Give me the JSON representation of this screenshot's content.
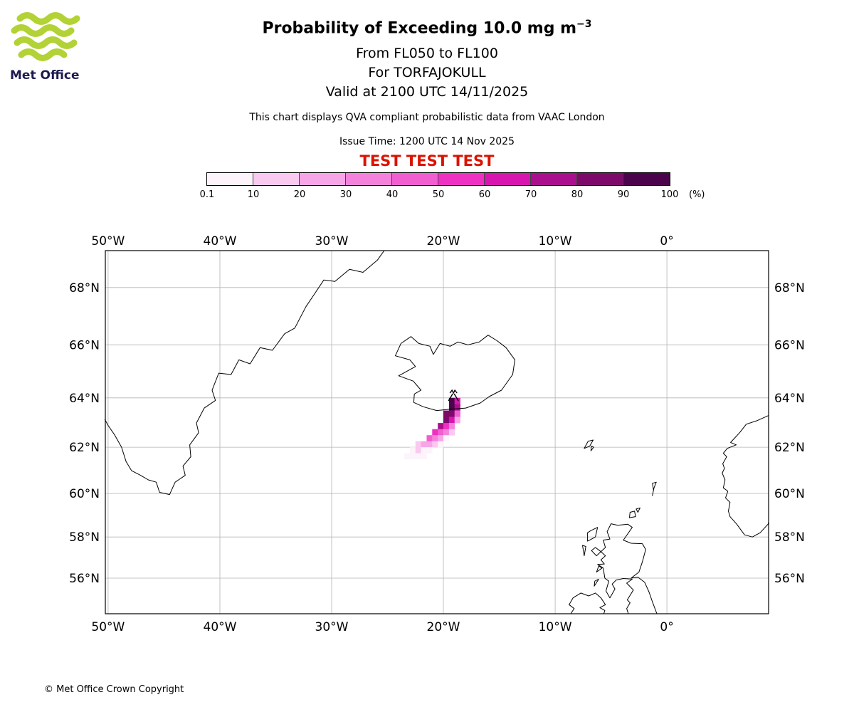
{
  "header": {
    "logo_text": "Met Office",
    "title_main": "Probability of Exceeding 10.0 mg m",
    "title_sup": "−3",
    "subtitle1": "From FL050 to FL100",
    "subtitle2": "For TORFAJOKULL",
    "subtitle3": "Valid at 2100 UTC 14/11/2025",
    "info_line": "This chart displays QVA compliant probabilistic data from VAAC London",
    "issue_time": "Issue Time: 1200 UTC 14 Nov 2025",
    "test_banner": "TEST TEST TEST"
  },
  "footer": {
    "copyright": "© Met Office Crown Copyright"
  },
  "colors": {
    "test_red": "#dd1100",
    "logo_green": "#b2d235",
    "logo_navy": "#1d1b4f",
    "grid_gray": "#b3b3b3"
  },
  "colorbar": {
    "tick_labels": [
      "0.1",
      "10",
      "20",
      "30",
      "40",
      "50",
      "60",
      "70",
      "80",
      "90",
      "100"
    ],
    "unit_label": "(%)",
    "colors": [
      "#fdf4fb",
      "#fac9f0",
      "#f7a5e6",
      "#f482db",
      "#f15ed0",
      "#ee30c3",
      "#d616ae",
      "#aa0f8d",
      "#7d096b",
      "#4b034c"
    ]
  },
  "chart_data": {
    "type": "heatmap",
    "title": "Probability of Exceeding 10.0 mg m^-3",
    "subtitle": "From FL050 to FL100 for TORFAJOKULL, valid at 2100 UTC 14/11/2025",
    "legend_label": "(%)",
    "map": {
      "projection": "mercator",
      "lon_range": [
        -50.25,
        9.1
      ],
      "lat_range": [
        54.18,
        69.2
      ],
      "grid": true,
      "grid_lons": [
        -50,
        -40,
        -30,
        -20,
        -10,
        0
      ],
      "grid_lats": [
        56,
        58,
        60,
        62,
        64,
        66,
        68
      ],
      "lon_tick_labels": [
        "50°W",
        "40°W",
        "30°W",
        "20°W",
        "10°W",
        "0°"
      ],
      "lat_tick_labels": [
        "56°N",
        "58°N",
        "60°N",
        "62°N",
        "64°N",
        "66°N",
        "68°N"
      ]
    },
    "volcano": {
      "name": "TORFAJOKULL",
      "lon": -19.1,
      "lat": 64.05
    },
    "probability_bins_percent": [
      0.1,
      10,
      20,
      30,
      40,
      50,
      60,
      70,
      80,
      90,
      100
    ],
    "bin_colors": [
      "#fdf4fb",
      "#fac9f0",
      "#f7a5e6",
      "#f482db",
      "#f15ed0",
      "#ee30c3",
      "#d616ae",
      "#aa0f8d",
      "#7d096b",
      "#4b034c"
    ],
    "cell_size_deg": {
      "lon": 0.5,
      "lat": 0.25
    },
    "plume_cells": [
      [
        -19.5,
        63.75,
        92
      ],
      [
        -19.0,
        63.75,
        60
      ],
      [
        -19.5,
        63.5,
        95
      ],
      [
        -19.0,
        63.5,
        72
      ],
      [
        -20.0,
        63.25,
        88
      ],
      [
        -19.5,
        63.25,
        80
      ],
      [
        -19.0,
        63.25,
        45
      ],
      [
        -20.0,
        63.0,
        82
      ],
      [
        -19.5,
        63.0,
        62
      ],
      [
        -19.0,
        63.0,
        28
      ],
      [
        -20.5,
        62.75,
        72
      ],
      [
        -20.0,
        62.75,
        58
      ],
      [
        -19.5,
        62.75,
        35
      ],
      [
        -21.0,
        62.5,
        58
      ],
      [
        -20.5,
        62.5,
        48
      ],
      [
        -20.0,
        62.5,
        30
      ],
      [
        -19.5,
        62.5,
        12
      ],
      [
        -21.5,
        62.25,
        42
      ],
      [
        -21.0,
        62.25,
        35
      ],
      [
        -20.5,
        62.25,
        22
      ],
      [
        -20.0,
        62.25,
        9
      ],
      [
        -22.5,
        62.0,
        15
      ],
      [
        -22.0,
        62.0,
        26
      ],
      [
        -21.5,
        62.0,
        20
      ],
      [
        -21.0,
        62.0,
        12
      ],
      [
        -20.5,
        62.0,
        5
      ],
      [
        -23.0,
        61.75,
        8
      ],
      [
        -22.5,
        61.75,
        11
      ],
      [
        -22.0,
        61.75,
        7
      ],
      [
        -21.5,
        61.75,
        4
      ],
      [
        -23.5,
        61.5,
        3
      ],
      [
        -23.0,
        61.5,
        4
      ],
      [
        -22.5,
        61.5,
        2
      ],
      [
        -22.0,
        61.5,
        1
      ]
    ],
    "coastlines": [
      {
        "name": "greenland",
        "closed": false,
        "pts": [
          [
            -25.3,
            69.2
          ],
          [
            -25.9,
            68.9
          ],
          [
            -27.2,
            68.5
          ],
          [
            -28.4,
            68.6
          ],
          [
            -29.7,
            68.2
          ],
          [
            -30.7,
            68.25
          ],
          [
            -31.5,
            67.8
          ],
          [
            -32.3,
            67.35
          ],
          [
            -33.3,
            66.6
          ],
          [
            -34.2,
            66.4
          ],
          [
            -35.3,
            65.8
          ],
          [
            -36.4,
            65.9
          ],
          [
            -37.3,
            65.3
          ],
          [
            -38.3,
            65.45
          ],
          [
            -39.0,
            64.9
          ],
          [
            -40.1,
            64.95
          ],
          [
            -40.7,
            64.3
          ],
          [
            -40.4,
            63.9
          ],
          [
            -41.4,
            63.6
          ],
          [
            -42.1,
            63.0
          ],
          [
            -41.9,
            62.6
          ],
          [
            -42.7,
            62.1
          ],
          [
            -42.6,
            61.6
          ],
          [
            -43.3,
            61.2
          ],
          [
            -43.1,
            60.8
          ],
          [
            -44.0,
            60.5
          ],
          [
            -44.5,
            59.95
          ],
          [
            -45.4,
            60.05
          ],
          [
            -45.7,
            60.5
          ],
          [
            -46.4,
            60.6
          ],
          [
            -47.1,
            60.8
          ],
          [
            -47.9,
            61.0
          ],
          [
            -48.4,
            61.4
          ],
          [
            -48.8,
            62.0
          ],
          [
            -49.4,
            62.5
          ],
          [
            -50.0,
            62.9
          ],
          [
            -50.3,
            63.15
          ]
        ]
      },
      {
        "name": "iceland",
        "closed": true,
        "pts": [
          [
            -22.65,
            63.82
          ],
          [
            -21.8,
            63.65
          ],
          [
            -20.6,
            63.5
          ],
          [
            -19.4,
            63.55
          ],
          [
            -18.0,
            63.6
          ],
          [
            -16.7,
            63.8
          ],
          [
            -15.9,
            64.05
          ],
          [
            -14.8,
            64.3
          ],
          [
            -13.8,
            64.9
          ],
          [
            -13.6,
            65.45
          ],
          [
            -14.4,
            65.9
          ],
          [
            -15.2,
            66.15
          ],
          [
            -16.0,
            66.35
          ],
          [
            -16.8,
            66.1
          ],
          [
            -17.8,
            66.0
          ],
          [
            -18.7,
            66.1
          ],
          [
            -19.4,
            65.95
          ],
          [
            -20.3,
            66.05
          ],
          [
            -20.9,
            65.65
          ],
          [
            -21.2,
            65.95
          ],
          [
            -22.2,
            66.05
          ],
          [
            -22.9,
            66.3
          ],
          [
            -23.8,
            66.05
          ],
          [
            -24.3,
            65.6
          ],
          [
            -23.0,
            65.45
          ],
          [
            -22.5,
            65.2
          ],
          [
            -24.0,
            64.85
          ],
          [
            -22.7,
            64.65
          ],
          [
            -22.0,
            64.3
          ],
          [
            -22.6,
            64.15
          ]
        ]
      },
      {
        "name": "great-britain",
        "closed": false,
        "pts": [
          [
            -0.9,
            54.18
          ],
          [
            -1.3,
            54.8
          ],
          [
            -1.6,
            55.3
          ],
          [
            -2.0,
            55.8
          ],
          [
            -2.6,
            56.05
          ],
          [
            -3.2,
            56.0
          ],
          [
            -2.5,
            56.3
          ],
          [
            -2.2,
            56.8
          ],
          [
            -1.9,
            57.4
          ],
          [
            -2.2,
            57.68
          ],
          [
            -3.2,
            57.7
          ],
          [
            -3.9,
            57.85
          ],
          [
            -3.1,
            58.45
          ],
          [
            -3.5,
            58.6
          ],
          [
            -4.4,
            58.55
          ],
          [
            -5.0,
            58.62
          ],
          [
            -5.35,
            58.25
          ],
          [
            -5.1,
            57.9
          ],
          [
            -5.7,
            57.85
          ],
          [
            -5.5,
            57.5
          ],
          [
            -5.9,
            57.3
          ],
          [
            -5.5,
            57.1
          ],
          [
            -5.9,
            56.9
          ],
          [
            -5.6,
            56.7
          ],
          [
            -6.2,
            56.68
          ],
          [
            -5.7,
            56.5
          ],
          [
            -5.55,
            56.0
          ],
          [
            -5.2,
            55.85
          ],
          [
            -5.45,
            55.35
          ],
          [
            -5.1,
            55.0
          ],
          [
            -4.65,
            55.45
          ],
          [
            -4.9,
            55.7
          ],
          [
            -4.55,
            55.9
          ],
          [
            -3.9,
            55.98
          ],
          [
            -3.1,
            55.95
          ],
          [
            -3.6,
            55.75
          ],
          [
            -3.0,
            55.4
          ],
          [
            -3.55,
            54.9
          ],
          [
            -3.3,
            54.75
          ],
          [
            -3.6,
            54.45
          ],
          [
            -3.45,
            54.18
          ]
        ]
      },
      {
        "name": "ireland-ne",
        "closed": false,
        "pts": [
          [
            -8.6,
            54.18
          ],
          [
            -8.3,
            54.45
          ],
          [
            -8.75,
            54.65
          ],
          [
            -8.4,
            55.0
          ],
          [
            -7.7,
            55.25
          ],
          [
            -7.0,
            55.1
          ],
          [
            -6.4,
            55.25
          ],
          [
            -5.9,
            55.0
          ],
          [
            -5.5,
            54.65
          ],
          [
            -6.0,
            54.5
          ],
          [
            -5.55,
            54.35
          ],
          [
            -5.65,
            54.18
          ]
        ]
      },
      {
        "name": "orkney-1",
        "closed": true,
        "pts": [
          [
            -3.35,
            58.9
          ],
          [
            -2.8,
            58.95
          ],
          [
            -2.9,
            59.2
          ],
          [
            -3.3,
            59.15
          ]
        ]
      },
      {
        "name": "orkney-2",
        "closed": true,
        "pts": [
          [
            -2.6,
            59.15
          ],
          [
            -2.4,
            59.35
          ],
          [
            -2.75,
            59.3
          ]
        ]
      },
      {
        "name": "shetland",
        "closed": true,
        "pts": [
          [
            -1.3,
            59.9
          ],
          [
            -1.15,
            60.25
          ],
          [
            -0.95,
            60.5
          ],
          [
            -1.3,
            60.45
          ],
          [
            -1.2,
            60.15
          ]
        ]
      },
      {
        "name": "lewis",
        "closed": true,
        "pts": [
          [
            -7.1,
            57.8
          ],
          [
            -6.4,
            58.0
          ],
          [
            -6.2,
            58.45
          ],
          [
            -6.8,
            58.3
          ],
          [
            -7.1,
            58.2
          ]
        ]
      },
      {
        "name": "uist",
        "closed": true,
        "pts": [
          [
            -7.4,
            57.1
          ],
          [
            -7.25,
            57.55
          ],
          [
            -7.55,
            57.6
          ]
        ]
      },
      {
        "name": "skye",
        "closed": true,
        "pts": [
          [
            -6.3,
            57.1
          ],
          [
            -5.9,
            57.3
          ],
          [
            -6.4,
            57.5
          ],
          [
            -6.75,
            57.35
          ]
        ]
      },
      {
        "name": "mull",
        "closed": true,
        "pts": [
          [
            -6.3,
            56.3
          ],
          [
            -5.8,
            56.5
          ],
          [
            -6.1,
            56.6
          ]
        ]
      },
      {
        "name": "islay",
        "closed": true,
        "pts": [
          [
            -6.5,
            55.6
          ],
          [
            -6.1,
            55.95
          ],
          [
            -6.45,
            55.85
          ]
        ]
      },
      {
        "name": "faroe-1",
        "closed": true,
        "pts": [
          [
            -7.4,
            61.95
          ],
          [
            -6.9,
            62.05
          ],
          [
            -6.6,
            62.3
          ],
          [
            -7.05,
            62.25
          ]
        ]
      },
      {
        "name": "faroe-2",
        "closed": true,
        "pts": [
          [
            -6.8,
            61.85
          ],
          [
            -6.55,
            62.0
          ],
          [
            -6.75,
            62.05
          ]
        ]
      },
      {
        "name": "norway",
        "closed": false,
        "pts": [
          [
            9.1,
            63.3
          ],
          [
            8.1,
            63.1
          ],
          [
            7.1,
            62.95
          ],
          [
            6.5,
            62.6
          ],
          [
            5.7,
            62.2
          ],
          [
            6.2,
            62.1
          ],
          [
            5.4,
            61.95
          ],
          [
            5.05,
            61.75
          ],
          [
            5.35,
            61.6
          ],
          [
            5.0,
            61.3
          ],
          [
            5.15,
            61.1
          ],
          [
            4.95,
            60.9
          ],
          [
            5.2,
            60.6
          ],
          [
            5.05,
            60.25
          ],
          [
            5.45,
            60.1
          ],
          [
            5.25,
            59.8
          ],
          [
            5.65,
            59.6
          ],
          [
            5.5,
            59.2
          ],
          [
            5.65,
            58.95
          ],
          [
            6.25,
            58.6
          ],
          [
            6.95,
            58.1
          ],
          [
            7.65,
            58.0
          ],
          [
            8.35,
            58.2
          ],
          [
            9.05,
            58.6
          ],
          [
            9.1,
            58.7
          ]
        ]
      }
    ]
  }
}
